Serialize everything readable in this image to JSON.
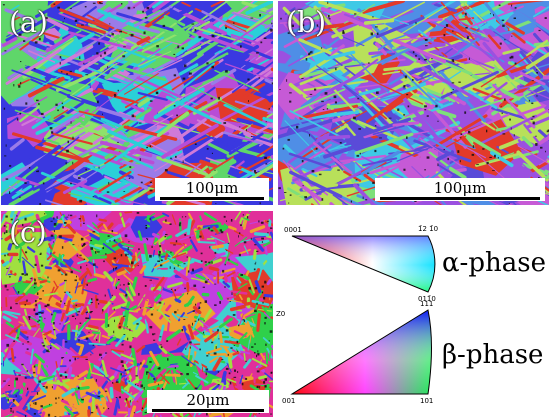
{
  "figure": {
    "panels": [
      {
        "id": "a",
        "label": "(a)",
        "scale_label": "100μm",
        "palette": [
          "#3a38e0",
          "#5fd66a",
          "#2ad0d8",
          "#b84dd6",
          "#e23a2a",
          "#9a7be8",
          "#d07ad8",
          "#8fe26a"
        ]
      },
      {
        "id": "b",
        "label": "(b)",
        "scale_label": "100μm",
        "palette": [
          "#9b50e0",
          "#3fc9e6",
          "#5a4bd8",
          "#e23a2a",
          "#7ee07a",
          "#c65ad6",
          "#4f8ee6",
          "#b8e05a"
        ]
      },
      {
        "id": "c",
        "label": "(c)",
        "scale_label": "20μm",
        "palette": [
          "#e0309a",
          "#3a3ae0",
          "#2fd04a",
          "#e23a2a",
          "#c040e0",
          "#f0a030",
          "#40d0d0",
          "#a0e040"
        ]
      }
    ],
    "legend": {
      "alpha": {
        "name": "α-phase",
        "corner_labels": [
          "0001",
          "1̄2 1̄0",
          "011̄0"
        ],
        "colors": [
          "#ff0000",
          "#0000ff",
          "#00ff00"
        ]
      },
      "beta": {
        "name": "β-phase",
        "corner_labels": [
          "001",
          "111",
          "101"
        ],
        "colors": [
          "#ff0000",
          "#0000ff",
          "#00ff00"
        ]
      },
      "side_mark": "Z0"
    }
  }
}
